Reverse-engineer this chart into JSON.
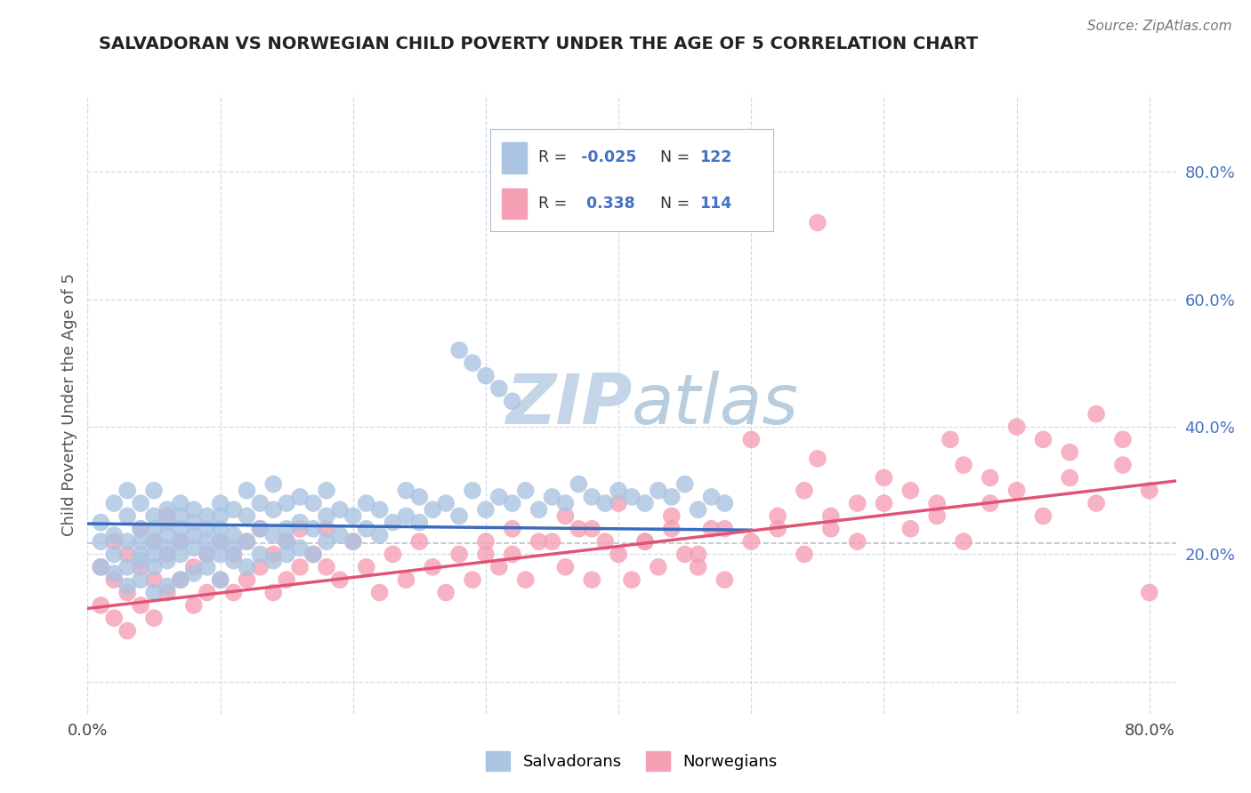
{
  "title": "SALVADORAN VS NORWEGIAN CHILD POVERTY UNDER THE AGE OF 5 CORRELATION CHART",
  "source_text": "Source: ZipAtlas.com",
  "ylabel": "Child Poverty Under the Age of 5",
  "xlim": [
    0.0,
    0.82
  ],
  "ylim": [
    -0.05,
    0.92
  ],
  "xticks": [
    0.0,
    0.1,
    0.2,
    0.3,
    0.4,
    0.5,
    0.6,
    0.7,
    0.8
  ],
  "yticks_right": [
    0.0,
    0.2,
    0.4,
    0.6,
    0.8
  ],
  "yticklabels_right": [
    "",
    "20.0%",
    "40.0%",
    "60.0%",
    "80.0%"
  ],
  "legend_r1": "-0.025",
  "legend_n1": "122",
  "legend_r2": "0.338",
  "legend_n2": "114",
  "legend_label1": "Salvadorans",
  "legend_label2": "Norwegians",
  "salvadoran_color": "#aac4e2",
  "norwegian_color": "#f5a0b5",
  "salvadoran_line_color": "#3a6bbf",
  "norwegian_line_color": "#e05575",
  "r_value_color": "#4472c4",
  "background_color": "#ffffff",
  "grid_color": "#d0dce8",
  "watermark_color": "#c5d5e8",
  "ref_line_color": "#c0c8d5",
  "salvadoran_x": [
    0.01,
    0.01,
    0.01,
    0.02,
    0.02,
    0.02,
    0.02,
    0.03,
    0.03,
    0.03,
    0.03,
    0.03,
    0.04,
    0.04,
    0.04,
    0.04,
    0.04,
    0.04,
    0.05,
    0.05,
    0.05,
    0.05,
    0.05,
    0.05,
    0.05,
    0.06,
    0.06,
    0.06,
    0.06,
    0.06,
    0.06,
    0.07,
    0.07,
    0.07,
    0.07,
    0.07,
    0.07,
    0.08,
    0.08,
    0.08,
    0.08,
    0.08,
    0.09,
    0.09,
    0.09,
    0.09,
    0.09,
    0.1,
    0.1,
    0.1,
    0.1,
    0.1,
    0.1,
    0.11,
    0.11,
    0.11,
    0.11,
    0.12,
    0.12,
    0.12,
    0.12,
    0.13,
    0.13,
    0.13,
    0.14,
    0.14,
    0.14,
    0.14,
    0.15,
    0.15,
    0.15,
    0.15,
    0.16,
    0.16,
    0.16,
    0.17,
    0.17,
    0.17,
    0.18,
    0.18,
    0.18,
    0.19,
    0.19,
    0.2,
    0.2,
    0.21,
    0.21,
    0.22,
    0.22,
    0.23,
    0.24,
    0.24,
    0.25,
    0.25,
    0.26,
    0.27,
    0.28,
    0.29,
    0.3,
    0.31,
    0.32,
    0.33,
    0.34,
    0.35,
    0.36,
    0.37,
    0.38,
    0.39,
    0.4,
    0.41,
    0.42,
    0.43,
    0.44,
    0.45,
    0.46,
    0.47,
    0.48,
    0.3,
    0.31,
    0.32,
    0.29,
    0.28
  ],
  "salvadoran_y": [
    0.22,
    0.25,
    0.18,
    0.2,
    0.23,
    0.17,
    0.28,
    0.18,
    0.22,
    0.15,
    0.26,
    0.3,
    0.16,
    0.2,
    0.24,
    0.19,
    0.28,
    0.22,
    0.14,
    0.18,
    0.22,
    0.26,
    0.2,
    0.24,
    0.3,
    0.15,
    0.19,
    0.23,
    0.27,
    0.21,
    0.25,
    0.16,
    0.2,
    0.24,
    0.28,
    0.22,
    0.26,
    0.17,
    0.21,
    0.25,
    0.23,
    0.27,
    0.18,
    0.22,
    0.26,
    0.2,
    0.24,
    0.16,
    0.2,
    0.24,
    0.28,
    0.22,
    0.26,
    0.19,
    0.23,
    0.27,
    0.21,
    0.18,
    0.22,
    0.26,
    0.3,
    0.2,
    0.24,
    0.28,
    0.19,
    0.23,
    0.27,
    0.31,
    0.2,
    0.24,
    0.28,
    0.22,
    0.21,
    0.25,
    0.29,
    0.2,
    0.24,
    0.28,
    0.22,
    0.26,
    0.3,
    0.23,
    0.27,
    0.22,
    0.26,
    0.24,
    0.28,
    0.23,
    0.27,
    0.25,
    0.26,
    0.3,
    0.25,
    0.29,
    0.27,
    0.28,
    0.26,
    0.3,
    0.27,
    0.29,
    0.28,
    0.3,
    0.27,
    0.29,
    0.28,
    0.31,
    0.29,
    0.28,
    0.3,
    0.29,
    0.28,
    0.3,
    0.29,
    0.31,
    0.27,
    0.29,
    0.28,
    0.48,
    0.46,
    0.44,
    0.5,
    0.52
  ],
  "norwegian_x": [
    0.01,
    0.01,
    0.02,
    0.02,
    0.02,
    0.03,
    0.03,
    0.03,
    0.04,
    0.04,
    0.04,
    0.05,
    0.05,
    0.05,
    0.06,
    0.06,
    0.06,
    0.07,
    0.07,
    0.08,
    0.08,
    0.09,
    0.09,
    0.1,
    0.1,
    0.11,
    0.11,
    0.12,
    0.12,
    0.13,
    0.13,
    0.14,
    0.14,
    0.15,
    0.15,
    0.16,
    0.16,
    0.17,
    0.18,
    0.18,
    0.19,
    0.2,
    0.21,
    0.22,
    0.23,
    0.24,
    0.25,
    0.26,
    0.27,
    0.28,
    0.29,
    0.3,
    0.31,
    0.32,
    0.33,
    0.35,
    0.36,
    0.37,
    0.38,
    0.39,
    0.4,
    0.41,
    0.42,
    0.43,
    0.44,
    0.45,
    0.46,
    0.47,
    0.48,
    0.5,
    0.52,
    0.54,
    0.56,
    0.58,
    0.6,
    0.62,
    0.64,
    0.66,
    0.68,
    0.7,
    0.72,
    0.74,
    0.76,
    0.78,
    0.8,
    0.5,
    0.55,
    0.6,
    0.65,
    0.7,
    0.38,
    0.4,
    0.42,
    0.44,
    0.46,
    0.48,
    0.52,
    0.54,
    0.56,
    0.58,
    0.3,
    0.32,
    0.34,
    0.36,
    0.62,
    0.64,
    0.66,
    0.68,
    0.72,
    0.74,
    0.76,
    0.78,
    0.8,
    0.55
  ],
  "norwegian_y": [
    0.12,
    0.18,
    0.1,
    0.16,
    0.22,
    0.08,
    0.14,
    0.2,
    0.12,
    0.18,
    0.24,
    0.1,
    0.16,
    0.22,
    0.14,
    0.2,
    0.26,
    0.16,
    0.22,
    0.12,
    0.18,
    0.14,
    0.2,
    0.16,
    0.22,
    0.14,
    0.2,
    0.16,
    0.22,
    0.18,
    0.24,
    0.14,
    0.2,
    0.16,
    0.22,
    0.18,
    0.24,
    0.2,
    0.18,
    0.24,
    0.16,
    0.22,
    0.18,
    0.14,
    0.2,
    0.16,
    0.22,
    0.18,
    0.14,
    0.2,
    0.16,
    0.22,
    0.18,
    0.2,
    0.16,
    0.22,
    0.18,
    0.24,
    0.16,
    0.22,
    0.2,
    0.16,
    0.22,
    0.18,
    0.24,
    0.2,
    0.18,
    0.24,
    0.16,
    0.22,
    0.24,
    0.2,
    0.26,
    0.22,
    0.28,
    0.24,
    0.26,
    0.22,
    0.28,
    0.3,
    0.26,
    0.32,
    0.28,
    0.34,
    0.3,
    0.38,
    0.35,
    0.32,
    0.38,
    0.4,
    0.24,
    0.28,
    0.22,
    0.26,
    0.2,
    0.24,
    0.26,
    0.3,
    0.24,
    0.28,
    0.2,
    0.24,
    0.22,
    0.26,
    0.3,
    0.28,
    0.34,
    0.32,
    0.38,
    0.36,
    0.42,
    0.38,
    0.14,
    0.72
  ],
  "ref_line_y": 0.218,
  "sal_trend_x0": 0.0,
  "sal_trend_x1": 0.5,
  "sal_trend_y0": 0.248,
  "sal_trend_y1": 0.238,
  "nor_trend_x0": 0.0,
  "nor_trend_x1": 0.82,
  "nor_trend_y0": 0.115,
  "nor_trend_y1": 0.315
}
